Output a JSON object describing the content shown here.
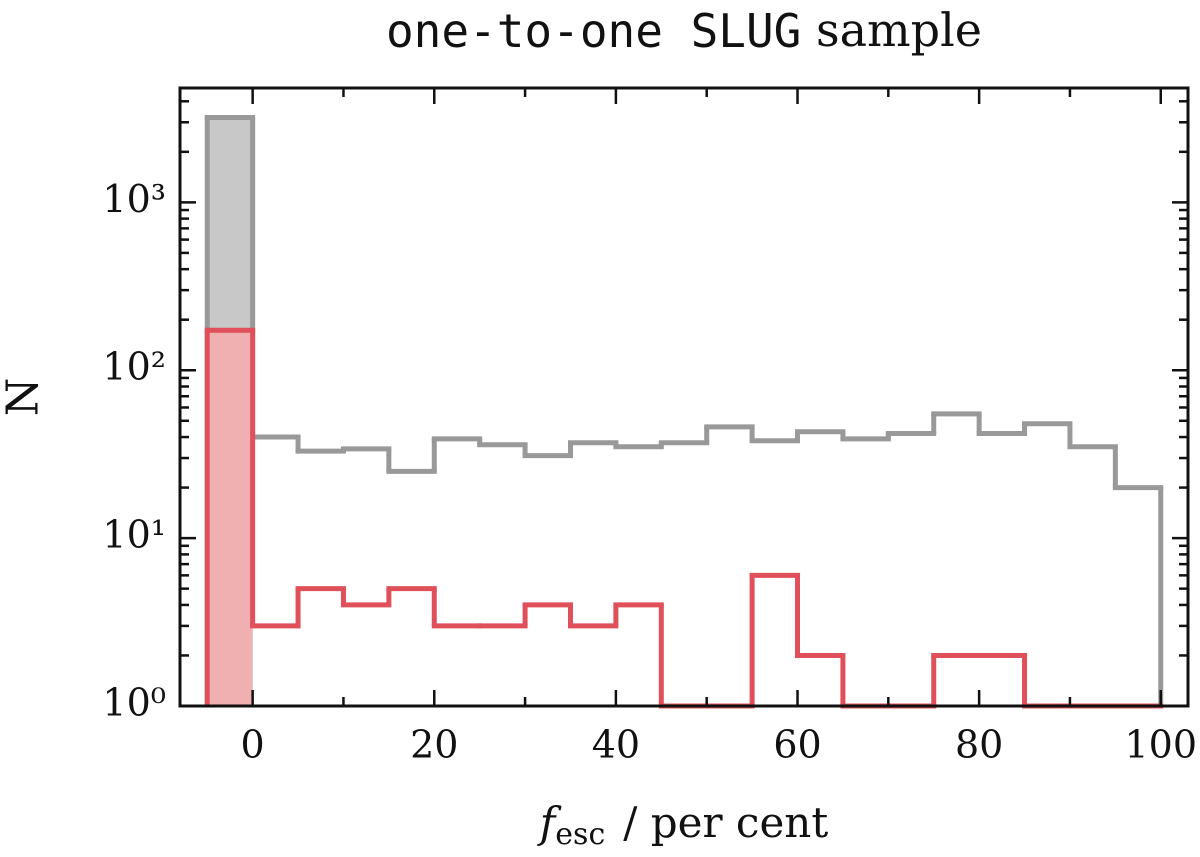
{
  "chart_data": {
    "type": "histogram",
    "title": [
      "one-to-one SLUG",
      "sample"
    ],
    "xlabel": [
      "f",
      "esc",
      "/ per cent"
    ],
    "ylabel": "N",
    "bins": [
      -5,
      0,
      5,
      10,
      15,
      20,
      25,
      30,
      35,
      40,
      45,
      50,
      55,
      60,
      65,
      70,
      75,
      80,
      85,
      90,
      95,
      100
    ],
    "series": [
      {
        "color": "#999999",
        "fill_color": "#c8c8c8",
        "fill_range": [
          -5,
          0
        ],
        "values": [
          3200,
          40,
          33,
          34,
          25,
          39,
          36,
          31,
          37,
          35,
          37,
          46,
          38,
          43,
          39,
          42,
          55,
          42,
          48,
          35,
          20
        ]
      },
      {
        "color": "#e0505a",
        "fill_color": "#f0b0b2",
        "fill_range": [
          -5,
          0
        ],
        "values": [
          173,
          3,
          5,
          4,
          5,
          3,
          3,
          4,
          3,
          4,
          1,
          1,
          6,
          2,
          1,
          1,
          2,
          2,
          0,
          0,
          0
        ]
      }
    ],
    "xlim": [
      -8,
      103
    ],
    "xticks": [
      0,
      20,
      40,
      60,
      80,
      100
    ],
    "xticks_minor": [
      10,
      30,
      50,
      70,
      90
    ],
    "ylim": [
      1,
      4800
    ],
    "ylog": true,
    "yticks": [
      {
        "value": 1,
        "label": "10⁰"
      },
      {
        "value": 10,
        "label": "10¹"
      },
      {
        "value": 100,
        "label": "10²"
      },
      {
        "value": 1000,
        "label": "10³"
      }
    ],
    "yticks_minor": [
      2,
      3,
      4,
      5,
      6,
      7,
      8,
      9,
      20,
      30,
      40,
      50,
      60,
      70,
      80,
      90,
      200,
      300,
      400,
      500,
      600,
      700,
      800,
      900,
      2000,
      3000,
      4000
    ]
  }
}
